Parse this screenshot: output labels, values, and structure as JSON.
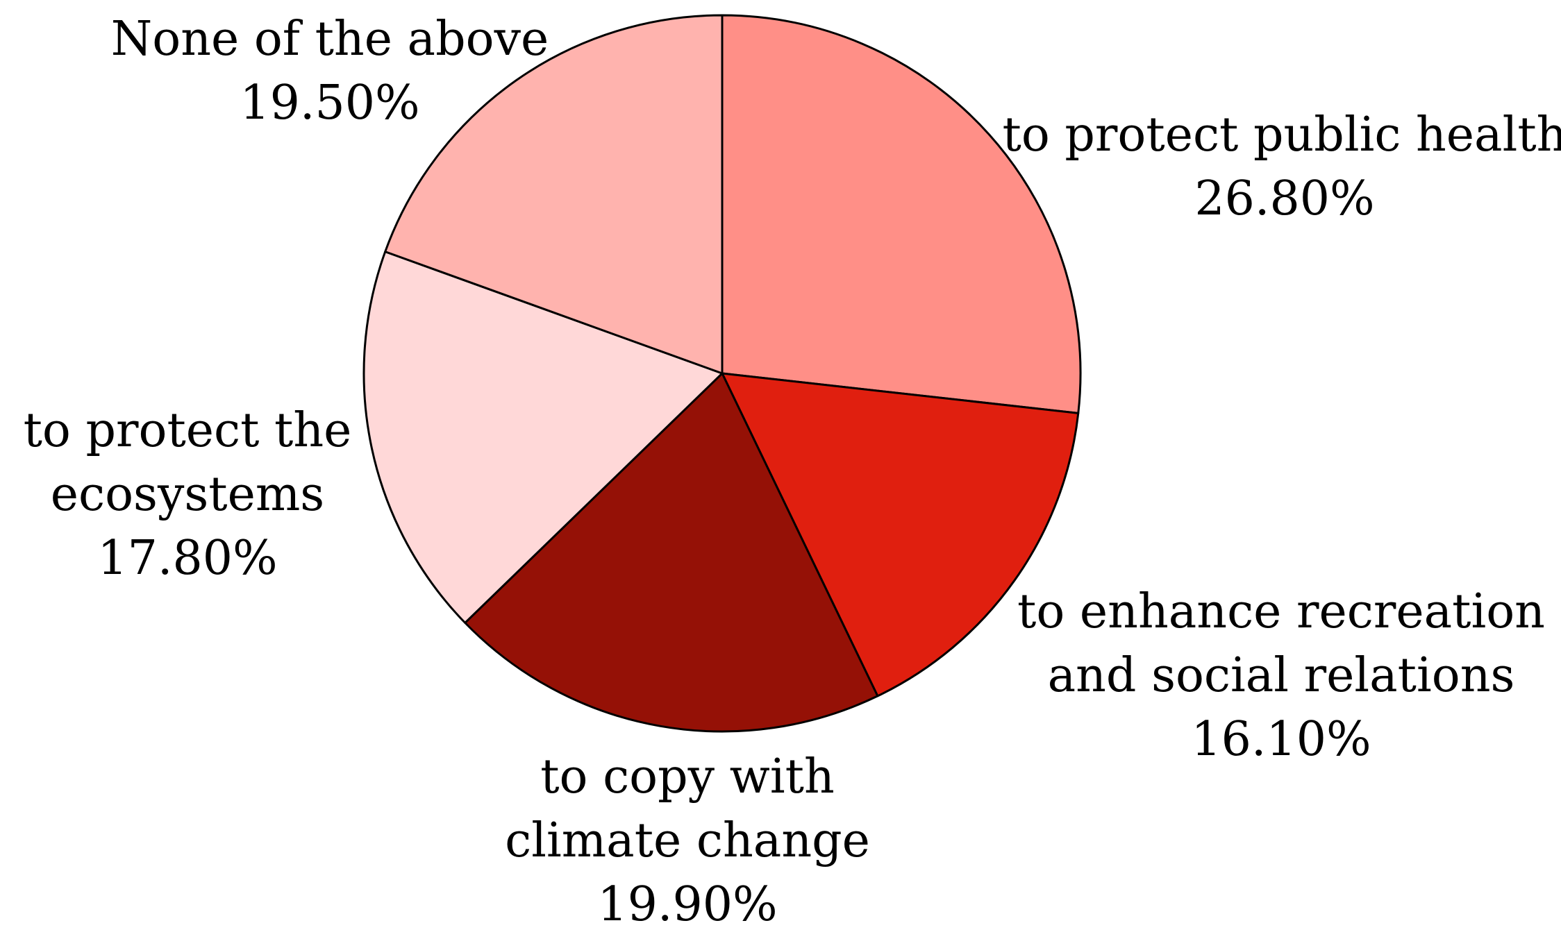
{
  "chart_data": {
    "type": "pie",
    "title": "",
    "start_angle_deg": 0,
    "direction": "clockwise",
    "slices": [
      {
        "label_lines": [
          "to protect public health"
        ],
        "value": 26.8,
        "value_label": "26.80%",
        "color": "#FF8F87"
      },
      {
        "label_lines": [
          "to enhance recreation",
          "and social relations"
        ],
        "value": 16.1,
        "value_label": "16.10%",
        "color": "#E01F0F"
      },
      {
        "label_lines": [
          "to copy with",
          "climate change"
        ],
        "value": 19.9,
        "value_label": "19.90%",
        "color": "#951106"
      },
      {
        "label_lines": [
          "to protect the",
          "ecosystems"
        ],
        "value": 17.8,
        "value_label": "17.80%",
        "color": "#FFD8D8"
      },
      {
        "label_lines": [
          "None of the above"
        ],
        "value": 19.5,
        "value_label": "19.50%",
        "color": "#FFB3AE"
      }
    ]
  }
}
